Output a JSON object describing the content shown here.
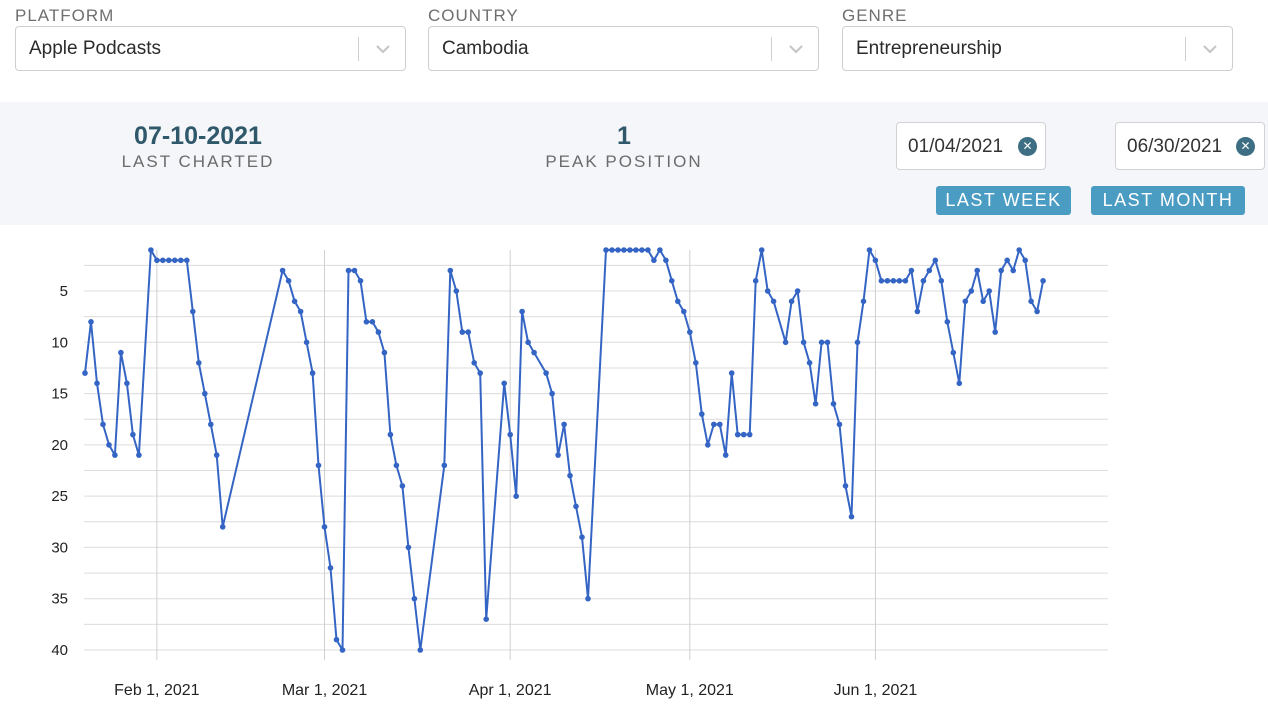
{
  "filters": [
    {
      "label": "PLATFORM",
      "value": "Apple Podcasts"
    },
    {
      "label": "COUNTRY",
      "value": "Cambodia"
    },
    {
      "label": "GENRE",
      "value": "Entrepreneurship"
    }
  ],
  "stats": {
    "last_charted_value": "07-10-2021",
    "last_charted_label": "LAST CHARTED",
    "peak_value": "1",
    "peak_label": "PEAK POSITION"
  },
  "date_range": {
    "start": "01/04/2021",
    "end": "06/30/2021"
  },
  "buttons": {
    "last_week": "LAST WEEK",
    "last_month": "LAST MONTH"
  },
  "colors": {
    "line": "#3565c4",
    "accent": "#4b9cc3",
    "stat_value": "#30586b"
  },
  "chart_data": {
    "type": "line",
    "x_start": "2021-01-20",
    "x_end": "2021-07-10",
    "y_reversed": true,
    "ylim": [
      1,
      40
    ],
    "y_ticks": [
      5,
      10,
      15,
      20,
      25,
      30,
      35,
      40
    ],
    "x_ticks": [
      {
        "date": "2021-02-01",
        "label": "Feb 1, 2021"
      },
      {
        "date": "2021-03-01",
        "label": "Mar 1, 2021"
      },
      {
        "date": "2021-04-01",
        "label": "Apr 1, 2021"
      },
      {
        "date": "2021-05-01",
        "label": "May 1, 2021"
      },
      {
        "date": "2021-06-01",
        "label": "Jun 1, 2021"
      }
    ],
    "grid": true,
    "series": [
      {
        "points": [
          [
            "2021-01-20",
            13
          ],
          [
            "2021-01-21",
            8
          ],
          [
            "2021-01-22",
            14
          ],
          [
            "2021-01-23",
            18
          ],
          [
            "2021-01-24",
            20
          ],
          [
            "2021-01-25",
            21
          ],
          [
            "2021-01-26",
            11
          ],
          [
            "2021-01-27",
            14
          ],
          [
            "2021-01-28",
            19
          ],
          [
            "2021-01-29",
            21
          ],
          [
            "2021-01-31",
            1
          ],
          [
            "2021-02-01",
            2
          ],
          [
            "2021-02-02",
            2
          ],
          [
            "2021-02-03",
            2
          ],
          [
            "2021-02-04",
            2
          ],
          [
            "2021-02-05",
            2
          ],
          [
            "2021-02-06",
            2
          ],
          [
            "2021-02-07",
            7
          ],
          [
            "2021-02-08",
            12
          ],
          [
            "2021-02-09",
            15
          ],
          [
            "2021-02-10",
            18
          ],
          [
            "2021-02-11",
            21
          ],
          [
            "2021-02-12",
            28
          ],
          [
            "2021-02-22",
            3
          ],
          [
            "2021-02-23",
            4
          ],
          [
            "2021-02-24",
            6
          ],
          [
            "2021-02-25",
            7
          ],
          [
            "2021-02-26",
            10
          ],
          [
            "2021-02-27",
            13
          ],
          [
            "2021-02-28",
            22
          ],
          [
            "2021-03-01",
            28
          ],
          [
            "2021-03-02",
            32
          ],
          [
            "2021-03-03",
            39
          ],
          [
            "2021-03-04",
            40
          ],
          [
            "2021-03-05",
            3
          ],
          [
            "2021-03-06",
            3
          ],
          [
            "2021-03-07",
            4
          ],
          [
            "2021-03-08",
            8
          ],
          [
            "2021-03-09",
            8
          ],
          [
            "2021-03-10",
            9
          ],
          [
            "2021-03-11",
            11
          ],
          [
            "2021-03-12",
            19
          ],
          [
            "2021-03-13",
            22
          ],
          [
            "2021-03-14",
            24
          ],
          [
            "2021-03-15",
            30
          ],
          [
            "2021-03-16",
            35
          ],
          [
            "2021-03-17",
            40
          ],
          [
            "2021-03-21",
            22
          ],
          [
            "2021-03-22",
            3
          ],
          [
            "2021-03-23",
            5
          ],
          [
            "2021-03-24",
            9
          ],
          [
            "2021-03-25",
            9
          ],
          [
            "2021-03-26",
            12
          ],
          [
            "2021-03-27",
            13
          ],
          [
            "2021-03-28",
            37
          ],
          [
            "2021-03-31",
            14
          ],
          [
            "2021-04-01",
            19
          ],
          [
            "2021-04-02",
            25
          ],
          [
            "2021-04-03",
            7
          ],
          [
            "2021-04-04",
            10
          ],
          [
            "2021-04-05",
            11
          ],
          [
            "2021-04-07",
            13
          ],
          [
            "2021-04-08",
            15
          ],
          [
            "2021-04-09",
            21
          ],
          [
            "2021-04-10",
            18
          ],
          [
            "2021-04-11",
            23
          ],
          [
            "2021-04-12",
            26
          ],
          [
            "2021-04-13",
            29
          ],
          [
            "2021-04-14",
            35
          ],
          [
            "2021-04-17",
            1
          ],
          [
            "2021-04-18",
            1
          ],
          [
            "2021-04-19",
            1
          ],
          [
            "2021-04-20",
            1
          ],
          [
            "2021-04-21",
            1
          ],
          [
            "2021-04-22",
            1
          ],
          [
            "2021-04-23",
            1
          ],
          [
            "2021-04-24",
            1
          ],
          [
            "2021-04-25",
            2
          ],
          [
            "2021-04-26",
            1
          ],
          [
            "2021-04-27",
            2
          ],
          [
            "2021-04-28",
            4
          ],
          [
            "2021-04-29",
            6
          ],
          [
            "2021-04-30",
            7
          ],
          [
            "2021-05-01",
            9
          ],
          [
            "2021-05-02",
            12
          ],
          [
            "2021-05-03",
            17
          ],
          [
            "2021-05-04",
            20
          ],
          [
            "2021-05-05",
            18
          ],
          [
            "2021-05-06",
            18
          ],
          [
            "2021-05-07",
            21
          ],
          [
            "2021-05-08",
            13
          ],
          [
            "2021-05-09",
            19
          ],
          [
            "2021-05-10",
            19
          ],
          [
            "2021-05-11",
            19
          ],
          [
            "2021-05-12",
            4
          ],
          [
            "2021-05-13",
            1
          ],
          [
            "2021-05-14",
            5
          ],
          [
            "2021-05-15",
            6
          ],
          [
            "2021-05-17",
            10
          ],
          [
            "2021-05-18",
            6
          ],
          [
            "2021-05-19",
            5
          ],
          [
            "2021-05-20",
            10
          ],
          [
            "2021-05-21",
            12
          ],
          [
            "2021-05-22",
            16
          ],
          [
            "2021-05-23",
            10
          ],
          [
            "2021-05-24",
            10
          ],
          [
            "2021-05-25",
            16
          ],
          [
            "2021-05-26",
            18
          ],
          [
            "2021-05-27",
            24
          ],
          [
            "2021-05-28",
            27
          ],
          [
            "2021-05-29",
            10
          ],
          [
            "2021-05-30",
            6
          ],
          [
            "2021-05-31",
            1
          ],
          [
            "2021-06-01",
            2
          ],
          [
            "2021-06-02",
            4
          ],
          [
            "2021-06-03",
            4
          ],
          [
            "2021-06-04",
            4
          ],
          [
            "2021-06-05",
            4
          ],
          [
            "2021-06-06",
            4
          ],
          [
            "2021-06-07",
            3
          ],
          [
            "2021-06-08",
            7
          ],
          [
            "2021-06-09",
            4
          ],
          [
            "2021-06-10",
            3
          ],
          [
            "2021-06-11",
            2
          ],
          [
            "2021-06-12",
            4
          ],
          [
            "2021-06-13",
            8
          ],
          [
            "2021-06-14",
            11
          ],
          [
            "2021-06-15",
            14
          ],
          [
            "2021-06-16",
            6
          ],
          [
            "2021-06-17",
            5
          ],
          [
            "2021-06-18",
            3
          ],
          [
            "2021-06-19",
            6
          ],
          [
            "2021-06-20",
            5
          ],
          [
            "2021-06-21",
            9
          ],
          [
            "2021-06-22",
            3
          ],
          [
            "2021-06-23",
            2
          ],
          [
            "2021-06-24",
            3
          ],
          [
            "2021-06-25",
            1
          ],
          [
            "2021-06-26",
            2
          ],
          [
            "2021-06-27",
            6
          ],
          [
            "2021-06-28",
            7
          ],
          [
            "2021-06-29",
            4
          ]
        ]
      }
    ]
  }
}
